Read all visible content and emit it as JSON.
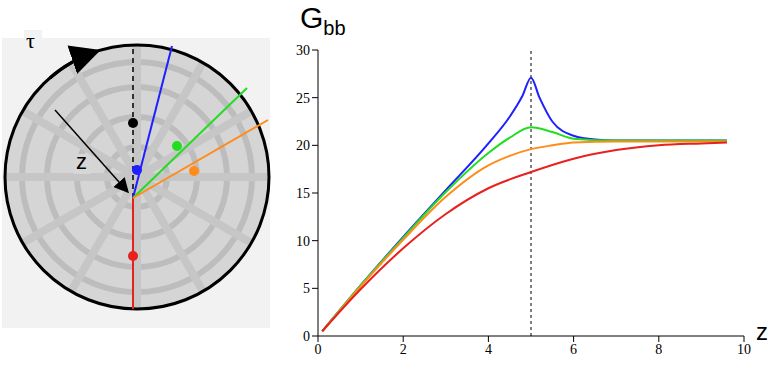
{
  "diagram": {
    "labels": {
      "boundary_time": "τ",
      "radial": "z"
    }
  },
  "chart_data": {
    "type": "line",
    "ylabel": {
      "text": "G",
      "subscript": "bb"
    },
    "xlabel": "z",
    "xlim": [
      0,
      10
    ],
    "ylim": [
      0,
      30
    ],
    "xticks": [
      0,
      2,
      4,
      6,
      8,
      10
    ],
    "yticks": [
      0,
      5,
      10,
      15,
      20,
      25,
      30
    ],
    "grid": false,
    "vline_x": 5,
    "series": [
      {
        "color": "#1f1fff",
        "line_style": "solid",
        "x": [
          0.1,
          1,
          2,
          3,
          4,
          4.5,
          4.8,
          5,
          5.2,
          5.5,
          6,
          6.5,
          7,
          8,
          9,
          9.6
        ],
        "values": [
          0.5,
          5.3,
          10.4,
          15.3,
          20.2,
          23.0,
          25.2,
          27.1,
          25.0,
          22.5,
          21.0,
          20.6,
          20.5,
          20.5,
          20.5,
          20.5
        ]
      },
      {
        "color": "#22dd22",
        "line_style": "solid",
        "x": [
          0.1,
          1,
          2,
          3,
          4,
          4.5,
          5,
          5.5,
          6,
          7,
          8,
          9.6
        ],
        "values": [
          0.5,
          5.3,
          10.3,
          15.1,
          19.2,
          20.8,
          21.9,
          21.4,
          20.7,
          20.5,
          20.5,
          20.5
        ]
      },
      {
        "color": "#ff8c1a",
        "line_style": "solid",
        "x": [
          0.1,
          1,
          2,
          3,
          4,
          4.5,
          5,
          5.5,
          6,
          7,
          8,
          9.6
        ],
        "values": [
          0.5,
          5.2,
          10.1,
          14.6,
          17.9,
          18.9,
          19.6,
          20.0,
          20.3,
          20.4,
          20.4,
          20.4
        ]
      },
      {
        "color": "#e8201e",
        "line_style": "solid",
        "x": [
          0.1,
          1,
          2,
          3,
          4,
          5,
          6,
          7,
          8,
          9,
          9.6
        ],
        "values": [
          0.5,
          4.9,
          9.2,
          12.8,
          15.5,
          17.2,
          18.6,
          19.5,
          20.0,
          20.2,
          20.3
        ]
      }
    ]
  }
}
